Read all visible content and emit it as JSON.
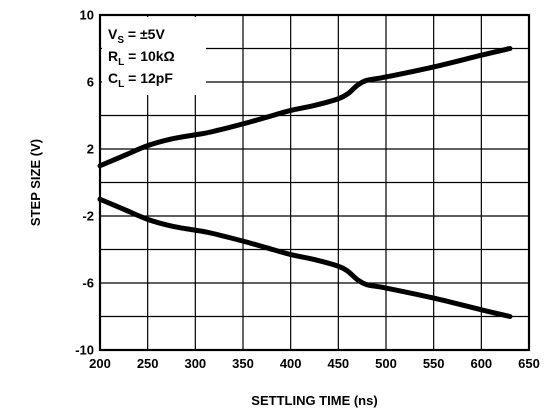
{
  "chart_data": {
    "type": "line",
    "title": "",
    "xlabel": "SETTLING TIME (ns)",
    "ylabel": "STEP SIZE (V)",
    "xlim": [
      200,
      650
    ],
    "ylim": [
      -10,
      10
    ],
    "xticks": [
      200,
      250,
      300,
      350,
      400,
      450,
      500,
      550,
      600,
      650
    ],
    "yticks": [
      -10,
      -6,
      -2,
      2,
      6,
      10
    ],
    "grid": true,
    "annotation": {
      "line1": {
        "main": "V",
        "sub": "S",
        "rest": " = ±5V"
      },
      "line2": {
        "main": "R",
        "sub": "L",
        "rest": " = 10kΩ"
      },
      "line3": {
        "main": "C",
        "sub": "L",
        "rest": " = 12pF"
      }
    },
    "series": [
      {
        "x": [
          200,
          225,
          250,
          275,
          300,
          315,
          350,
          375,
          400,
          425,
          450,
          460,
          470,
          480,
          500,
          550,
          600,
          630
        ],
        "y": [
          1.0,
          1.6,
          2.2,
          2.6,
          2.85,
          3.0,
          3.5,
          3.9,
          4.3,
          4.6,
          5.0,
          5.3,
          5.8,
          6.1,
          6.3,
          6.9,
          7.6,
          8.0
        ]
      },
      {
        "x": [
          200,
          225,
          250,
          275,
          300,
          315,
          350,
          375,
          400,
          425,
          450,
          460,
          470,
          480,
          500,
          550,
          600,
          630
        ],
        "y": [
          -1.0,
          -1.6,
          -2.2,
          -2.6,
          -2.85,
          -3.0,
          -3.5,
          -3.9,
          -4.3,
          -4.6,
          -5.0,
          -5.3,
          -5.8,
          -6.1,
          -6.3,
          -6.9,
          -7.6,
          -8.0
        ]
      }
    ]
  }
}
